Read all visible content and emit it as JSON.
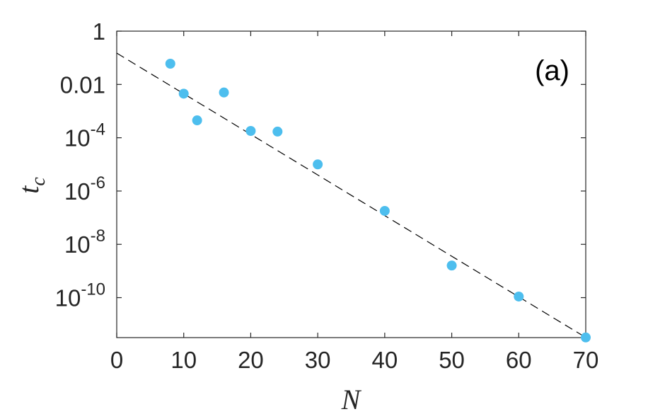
{
  "chart_data": {
    "type": "scatter",
    "xlabel": "N",
    "ylabel": "t",
    "ylabel_sub": "c",
    "annotation": "(a)",
    "xlim": [
      0,
      70
    ],
    "ylim_exponent": [
      -11.5,
      0
    ],
    "y_scale": "log",
    "grid": false,
    "legend": "none",
    "x_ticks": [
      "0",
      "10",
      "20",
      "30",
      "40",
      "50",
      "60",
      "70"
    ],
    "x_tick_values": [
      0,
      10,
      20,
      30,
      40,
      50,
      60,
      70
    ],
    "y_ticks": [
      {
        "value": 1,
        "base": "1",
        "exp": ""
      },
      {
        "value": 0.01,
        "base": "0.01",
        "exp": ""
      },
      {
        "value": 0.0001,
        "base": "10",
        "exp": "-4"
      },
      {
        "value": 1e-06,
        "base": "10",
        "exp": "-6"
      },
      {
        "value": 1e-08,
        "base": "10",
        "exp": "-8"
      },
      {
        "value": 1e-10,
        "base": "10",
        "exp": "-10"
      }
    ],
    "series": [
      {
        "type": "scatter",
        "color": "#4DBEEE",
        "x": [
          8,
          10,
          12,
          16,
          20,
          24,
          30,
          40,
          50,
          60,
          70
        ],
        "y": [
          0.06,
          0.0045,
          0.00045,
          0.005,
          0.00018,
          0.00017,
          1e-05,
          1.8e-07,
          1.6e-09,
          1.1e-10,
          3.2e-12
        ]
      },
      {
        "type": "line",
        "style": "dashed",
        "color": "#000000",
        "x": [
          0,
          70
        ],
        "y": [
          0.15,
          3.2e-12
        ]
      }
    ]
  }
}
